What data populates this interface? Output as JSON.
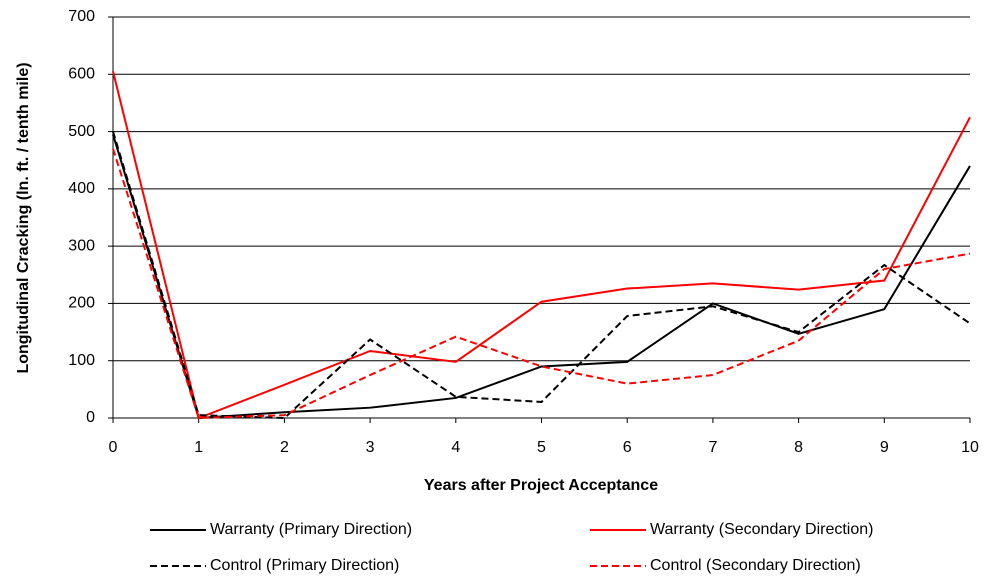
{
  "chart_data": {
    "type": "line",
    "x_label": "Years after Project Acceptance",
    "y_label": "Longitudinal Cracking (ln. ft. / tenth mile)",
    "x": [
      0,
      1,
      2,
      3,
      4,
      5,
      6,
      7,
      8,
      9,
      10
    ],
    "xlim": [
      0,
      10
    ],
    "xticks": [
      0,
      1,
      2,
      3,
      4,
      5,
      6,
      7,
      8,
      9,
      10
    ],
    "ylim": [
      0,
      700
    ],
    "yticks": [
      0,
      100,
      200,
      300,
      400,
      500,
      600,
      700
    ],
    "grid": true,
    "legend": "bottom",
    "series": [
      {
        "name": "Warranty (Primary Direction)",
        "color": "#000000",
        "dashed": false,
        "values": [
          495,
          0,
          10,
          18,
          35,
          90,
          98,
          200,
          147,
          190,
          440
        ]
      },
      {
        "name": "Warranty (Secondary Direction)",
        "color": "#ff0000",
        "dashed": false,
        "values": [
          605,
          0,
          58,
          117,
          98,
          203,
          226,
          235,
          224,
          240,
          525
        ]
      },
      {
        "name": "Control (Primary Direction)",
        "color": "#000000",
        "dashed": true,
        "values": [
          500,
          5,
          0,
          137,
          37,
          28,
          178,
          195,
          150,
          267,
          165
        ]
      },
      {
        "name": "Control (Secondary Direction)",
        "color": "#ff0000",
        "dashed": true,
        "values": [
          470,
          0,
          5,
          75,
          142,
          90,
          60,
          75,
          135,
          260,
          287
        ]
      }
    ]
  }
}
